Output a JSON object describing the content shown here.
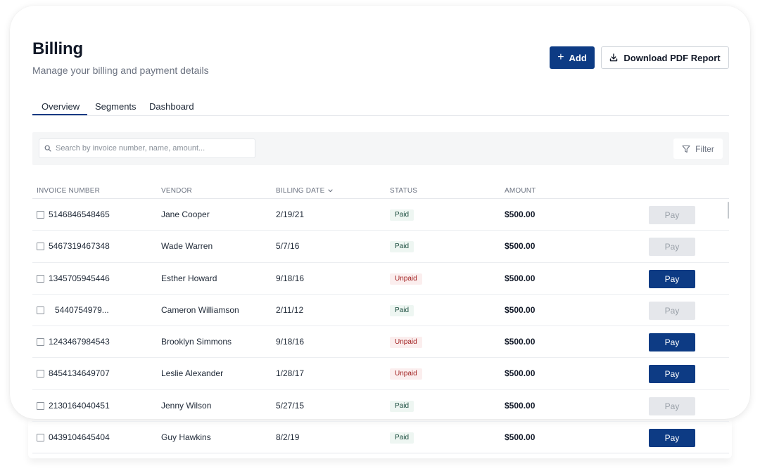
{
  "header": {
    "title": "Billing",
    "subtitle": "Manage your billing and payment details",
    "add_label": "Add",
    "download_label": "Download PDF Report"
  },
  "tabs": [
    {
      "label": "Overview",
      "active": true
    },
    {
      "label": "Segments",
      "active": false
    },
    {
      "label": "Dashboard",
      "active": false
    }
  ],
  "toolbar": {
    "search_placeholder": "Search by invoice number, name, amount...",
    "filter_label": "Filter"
  },
  "table": {
    "columns": {
      "invoice": "INVOICE NUMBER",
      "vendor": "VENDOR",
      "billing_date": "BILLING DATE",
      "status": "STATUS",
      "amount": "AMOUNT"
    },
    "rows": [
      {
        "invoice": "5146846548465",
        "vendor": "Jane Cooper",
        "date": "2/19/21",
        "status": "Paid",
        "amount": "$500.00",
        "pay": "Pay"
      },
      {
        "invoice": "5467319467348",
        "vendor": "Wade Warren",
        "date": "5/7/16",
        "status": "Paid",
        "amount": "$500.00",
        "pay": "Pay"
      },
      {
        "invoice": "1345705945446",
        "vendor": "Esther Howard",
        "date": "9/18/16",
        "status": "Unpaid",
        "amount": "$500.00",
        "pay": "Pay"
      },
      {
        "invoice": "5440754979...",
        "vendor": "Cameron Williamson",
        "date": "2/11/12",
        "status": "Paid",
        "amount": "$500.00",
        "pay": "Pay"
      },
      {
        "invoice": "1243467984543",
        "vendor": "Brooklyn Simmons",
        "date": "9/18/16",
        "status": "Unpaid",
        "amount": "$500.00",
        "pay": "Pay"
      },
      {
        "invoice": "8454134649707",
        "vendor": "Leslie Alexander",
        "date": "1/28/17",
        "status": "Unpaid",
        "amount": "$500.00",
        "pay": "Pay"
      },
      {
        "invoice": "2130164040451",
        "vendor": "Jenny Wilson",
        "date": "5/27/15",
        "status": "Paid",
        "amount": "$500.00",
        "pay": "Pay"
      },
      {
        "invoice": "0439104645404",
        "vendor": "Guy Hawkins",
        "date": "8/2/19",
        "status": "Paid",
        "amount": "$500.00",
        "pay": "Pay"
      }
    ]
  },
  "colors": {
    "primary": "#0d3b84",
    "paid_bg": "#eef6f2",
    "paid_text": "#1b4d3e",
    "unpaid_bg": "#fbeeee",
    "unpaid_text": "#a11f1f"
  },
  "icons": {
    "add": "plus-icon",
    "download": "download-icon",
    "search": "search-icon",
    "filter": "filter-icon",
    "sort": "chevron-down-icon"
  }
}
